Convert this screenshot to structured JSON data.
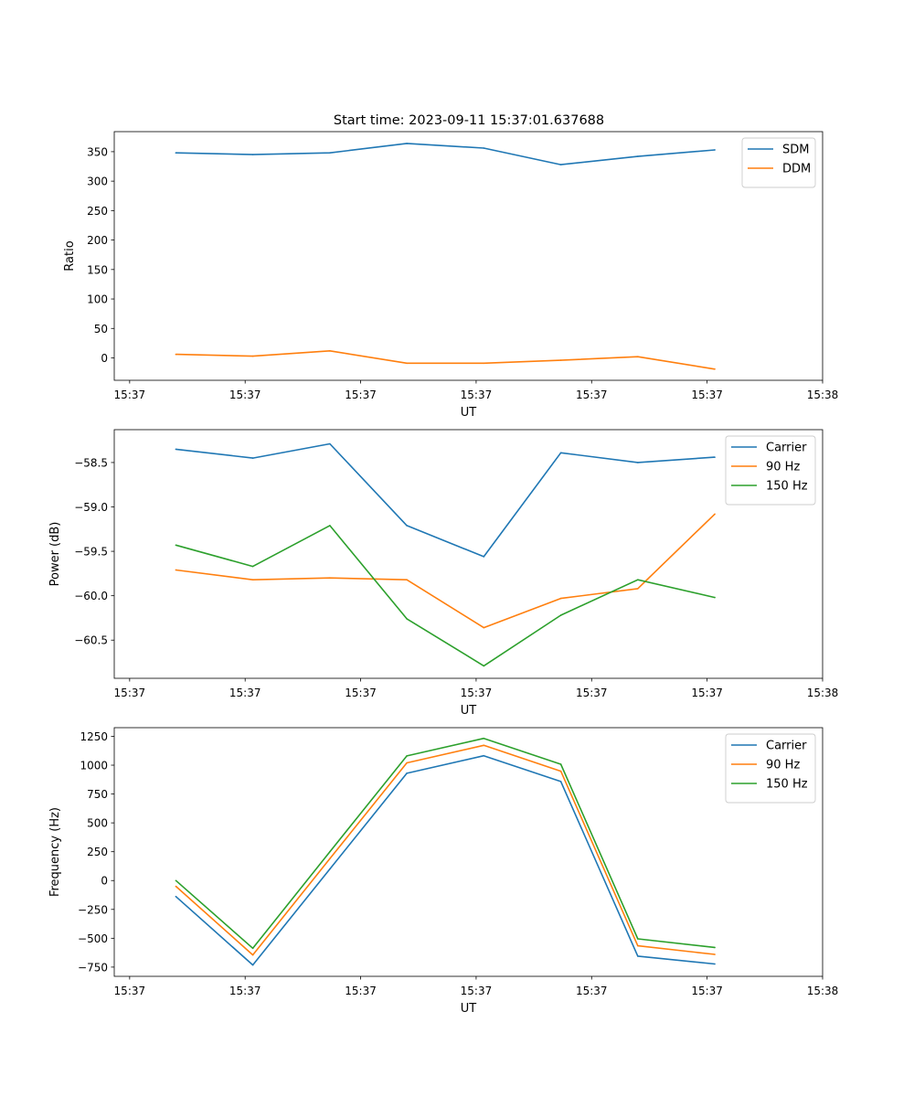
{
  "figure_title": "Start time: 2023-09-11 15:37:01.637688",
  "chart_data": [
    {
      "type": "line",
      "title": "Start time: 2023-09-11 15:37:01.637688",
      "xlabel": "UT",
      "ylabel": "Ratio",
      "x": [
        1,
        2,
        3,
        4,
        5,
        6,
        7,
        8
      ],
      "xlim": [
        0.2,
        9.4
      ],
      "xticks": [
        0.4,
        1.9,
        3.4,
        4.9,
        6.4,
        7.9,
        9.4
      ],
      "xtick_labels": [
        "15:37",
        "15:37",
        "15:37",
        "15:37",
        "15:37",
        "15:37",
        "15:38"
      ],
      "ylim": [
        -38,
        384
      ],
      "yticks": [
        0,
        50,
        100,
        150,
        200,
        250,
        300,
        350
      ],
      "ytick_labels": [
        "0",
        "50",
        "100",
        "150",
        "200",
        "250",
        "300",
        "350"
      ],
      "legend": "top-right",
      "series": [
        {
          "name": "SDM",
          "color": "#1f77b4",
          "values": [
            348,
            345,
            348,
            364,
            356,
            328,
            342,
            353
          ]
        },
        {
          "name": "DDM",
          "color": "#ff7f0e",
          "values": [
            6,
            3,
            12,
            -9,
            -9,
            -4,
            2,
            -19
          ]
        }
      ]
    },
    {
      "type": "line",
      "title": "",
      "xlabel": "UT",
      "ylabel": "Power (dB)",
      "x": [
        1,
        2,
        3,
        4,
        5,
        6,
        7,
        8
      ],
      "xlim": [
        0.2,
        9.4
      ],
      "xticks": [
        0.4,
        1.9,
        3.4,
        4.9,
        6.4,
        7.9,
        9.4
      ],
      "xtick_labels": [
        "15:37",
        "15:37",
        "15:37",
        "15:37",
        "15:37",
        "15:37",
        "15:38"
      ],
      "ylim": [
        -60.93,
        -58.13
      ],
      "yticks": [
        -60.5,
        -60.0,
        -59.5,
        -59.0,
        -58.5
      ],
      "ytick_labels": [
        "−60.5",
        "−60.0",
        "−59.5",
        "−59.0",
        "−58.5"
      ],
      "legend": "top-right",
      "series": [
        {
          "name": "Carrier",
          "color": "#1f77b4",
          "values": [
            -58.35,
            -58.45,
            -58.29,
            -59.21,
            -59.56,
            -58.39,
            -58.5,
            -58.44
          ]
        },
        {
          "name": "90 Hz",
          "color": "#ff7f0e",
          "values": [
            -59.71,
            -59.82,
            -59.8,
            -59.82,
            -60.36,
            -60.03,
            -59.92,
            -59.08
          ]
        },
        {
          "name": "150 Hz",
          "color": "#2ca02c",
          "values": [
            -59.43,
            -59.67,
            -59.21,
            -60.26,
            -60.79,
            -60.22,
            -59.82,
            -60.02
          ]
        }
      ]
    },
    {
      "type": "line",
      "title": "",
      "xlabel": "UT",
      "ylabel": "Frequency (Hz)",
      "x": [
        1,
        2,
        3,
        4,
        5,
        6,
        7,
        8
      ],
      "xlim": [
        0.2,
        9.4
      ],
      "xticks": [
        0.4,
        1.9,
        3.4,
        4.9,
        6.4,
        7.9,
        9.4
      ],
      "xtick_labels": [
        "15:37",
        "15:37",
        "15:37",
        "15:37",
        "15:37",
        "15:37",
        "15:38"
      ],
      "ylim": [
        -830,
        1325
      ],
      "yticks": [
        -750,
        -500,
        -250,
        0,
        250,
        500,
        750,
        1000,
        1250
      ],
      "ytick_labels": [
        "−750",
        "−500",
        "−250",
        "0",
        "250",
        "500",
        "750",
        "1000",
        "1250"
      ],
      "legend": "top-right",
      "series": [
        {
          "name": "Carrier",
          "color": "#1f77b4",
          "values": [
            -138,
            -732,
            100,
            930,
            1082,
            858,
            -655,
            -723
          ]
        },
        {
          "name": "90 Hz",
          "color": "#ff7f0e",
          "values": [
            -50,
            -645,
            190,
            1020,
            1172,
            948,
            -565,
            -640
          ]
        },
        {
          "name": "150 Hz",
          "color": "#2ca02c",
          "values": [
            0,
            -587,
            250,
            1080,
            1232,
            1008,
            -505,
            -580
          ]
        }
      ]
    }
  ]
}
